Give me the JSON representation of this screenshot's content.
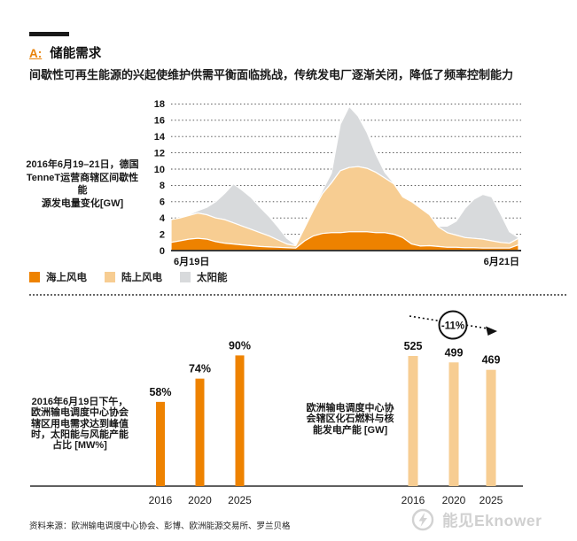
{
  "header": {
    "section_label": "A:",
    "title": "储能需求",
    "subtitle": "间歇性可再生能源的兴起使维护供需平衡面临挑战，传统发电厂逐渐关闭，降低了频率控制能力"
  },
  "area_section": {
    "caption_lines": [
      "2016年6月19–21日，德国",
      "TenneT运营商辖区间歇性能",
      "源发电量变化[GW]"
    ],
    "legend": [
      {
        "label": "海上风电",
        "color": "#ee8200"
      },
      {
        "label": "陆上风电",
        "color": "#f7cd92"
      },
      {
        "label": "太阳能",
        "color": "#d8dadc"
      }
    ]
  },
  "bars_section": {
    "left_caption_lines": [
      "2016年6月19日下午，",
      "欧洲输电调度中心协会",
      "辖区用电需求达到峰值",
      "时，太阳能与风能产能",
      "占比 [MW%]"
    ],
    "right_caption_lines": [
      "欧洲输电调度中心协",
      "会辖区化石燃料与核",
      "能发电产能 [GW]"
    ],
    "annotation": "-11%"
  },
  "footer": {
    "source": "资料来源：欧洲输电调度中心协会、彭博、欧洲能源交易所、罗兰贝格",
    "logo_text": "能见Eknower"
  },
  "colors": {
    "accent_orange": "#ee8200",
    "tan": "#f7cd92",
    "gray": "#d8dadc",
    "heading_orange": "#e8820a"
  },
  "chart_data": [
    {
      "id": "intermittent-generation-area",
      "type": "area",
      "stacked": true,
      "title": "2016年6月19–21日，德国TenneT运营商辖区间歇性能源发电量变化[GW]",
      "ylabel": "GW",
      "ylim": [
        0,
        18
      ],
      "y_ticks": [
        0,
        2,
        4,
        6,
        8,
        10,
        12,
        14,
        16,
        18
      ],
      "grid": "dotted-horizontal",
      "legend_position": "bottom",
      "x_tick_labels": [
        "6月19日",
        "6月21日"
      ],
      "series": [
        {
          "name": "海上风电",
          "color": "#ee8200",
          "values": [
            1.0,
            1.2,
            1.4,
            1.5,
            1.4,
            1.1,
            0.9,
            0.8,
            0.7,
            0.6,
            0.5,
            0.45,
            0.4,
            0.35,
            0.3,
            1.2,
            1.8,
            2.1,
            2.2,
            2.2,
            2.3,
            2.3,
            2.3,
            2.2,
            2.2,
            2.0,
            1.6,
            0.8,
            0.55,
            0.6,
            0.5,
            0.4,
            0.4,
            0.35,
            0.35,
            0.3,
            0.3,
            0.3,
            0.3,
            0.7
          ]
        },
        {
          "name": "陆上风电",
          "color": "#f7cd92",
          "values": [
            2.8,
            2.8,
            2.9,
            3.1,
            3.0,
            2.9,
            2.9,
            2.6,
            2.3,
            2.0,
            1.7,
            1.35,
            0.9,
            0.45,
            0.3,
            1.6,
            3.2,
            4.9,
            6.1,
            7.6,
            7.9,
            8.0,
            7.8,
            7.4,
            6.7,
            6.2,
            5.0,
            5.2,
            4.65,
            3.8,
            2.4,
            1.8,
            1.5,
            1.25,
            1.15,
            1.1,
            0.9,
            0.7,
            0.6,
            0.8
          ]
        },
        {
          "name": "太阳能",
          "color": "#d8dadc",
          "values": [
            0,
            0,
            0.1,
            0.3,
            0.9,
            2.0,
            3.2,
            4.8,
            4.4,
            3.9,
            3.1,
            2.4,
            1.6,
            0.7,
            0.1,
            0.1,
            0.2,
            0.4,
            1.2,
            5.7,
            7.5,
            6.2,
            4.4,
            2.2,
            0.7,
            0.1,
            0.1,
            0.1,
            0.1,
            0.1,
            0.1,
            0.8,
            1.7,
            3.6,
            4.8,
            5.5,
            5.4,
            3.5,
            1.4,
            0.1
          ]
        }
      ]
    },
    {
      "id": "renewables-peak-share-bars",
      "type": "bar",
      "title": "2016年6月19日下午，欧洲输电调度中心协会辖区用电需求达到峰值时，太阳能与风能产能占比 [MW%]",
      "categories": [
        "2016",
        "2020",
        "2025"
      ],
      "values": [
        58,
        74,
        90
      ],
      "value_labels": [
        "58%",
        "74%",
        "90%"
      ],
      "color": "#ee8200"
    },
    {
      "id": "fossil-nuclear-capacity-bars",
      "type": "bar",
      "title": "欧洲输电调度中心协会辖区化石燃料与核能发电产能 [GW]",
      "categories": [
        "2016",
        "2020",
        "2025"
      ],
      "values": [
        525,
        499,
        469
      ],
      "value_labels": [
        "525",
        "499",
        "469"
      ],
      "annotation": "-11%",
      "color": "#f7cd92"
    }
  ]
}
